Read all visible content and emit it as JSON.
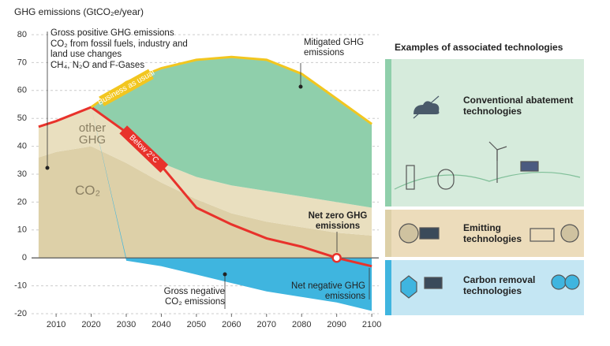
{
  "chart_data": {
    "type": "stacked-area",
    "title": "GHG emissions (GtCO₂e/year)",
    "x": [
      2005,
      2010,
      2020,
      2030,
      2040,
      2050,
      2060,
      2070,
      2080,
      2090,
      2100
    ],
    "xlim": [
      2003,
      2102
    ],
    "xticks": [
      2010,
      2020,
      2030,
      2040,
      2050,
      2060,
      2070,
      2080,
      2090,
      2100
    ],
    "ylim": [
      -20,
      80
    ],
    "yticks": [
      -20,
      -10,
      0,
      10,
      20,
      30,
      40,
      50,
      60,
      70,
      80
    ],
    "grid": true,
    "series": [
      {
        "name": "CO₂",
        "kind": "area",
        "color": "#ddd0a8",
        "values": [
          36,
          38,
          40,
          34,
          27,
          21,
          16,
          13,
          11,
          9,
          8
        ]
      },
      {
        "name": "other GHG",
        "kind": "area",
        "color": "#e9dfbf",
        "values": [
          11,
          11,
          14,
          11,
          7,
          8,
          10,
          11,
          11,
          11,
          10
        ]
      },
      {
        "name": "Mitigated GHG emissions",
        "kind": "area",
        "color": "#8fcfab",
        "values": [
          null,
          null,
          0,
          18,
          34,
          42,
          46,
          47,
          44,
          37,
          30
        ]
      },
      {
        "name": "Gross negative CO₂ emissions",
        "kind": "area",
        "color": "#3fb5df",
        "values": [
          0,
          0,
          0,
          -1,
          -3,
          -6,
          -9,
          -12,
          -14,
          -16,
          -19
        ]
      },
      {
        "name": "Below 2°C",
        "kind": "line",
        "color": "#e8322b",
        "values": [
          47,
          49,
          54,
          45,
          33,
          18,
          12,
          7,
          4,
          0,
          -3
        ]
      },
      {
        "name": "Business as usual",
        "kind": "line",
        "color": "#f2c61f",
        "values": [
          null,
          null,
          54,
          63,
          68,
          71,
          72,
          71,
          66,
          57,
          48
        ]
      }
    ],
    "annotations": [
      "Gross positive GHG emissions",
      "CO₂ from fossil fuels, industry and land use changes",
      "CH₄, N₂O and F-Gases",
      "Net zero GHG emissions",
      "Net negative GHG emissions"
    ],
    "panel": {
      "title": "Examples of associated technologies",
      "items": [
        "Conventional abatement technologies",
        "Emitting technologies",
        "Carbon removal technologies"
      ]
    }
  }
}
